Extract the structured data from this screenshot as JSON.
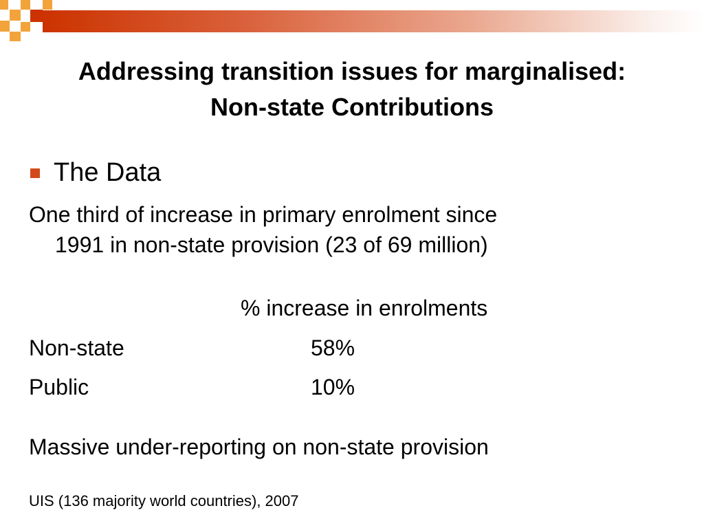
{
  "colors": {
    "accent": "#cc3300",
    "accent_light": "#f2a33a",
    "bullet": "#d24a1c"
  },
  "title": {
    "line1": "Addressing transition issues for marginalised:",
    "line2": "Non-state Contributions"
  },
  "bullet": {
    "text": "The Data"
  },
  "paragraph": {
    "line1": "One third of increase in primary enrolment since",
    "line2": "1991 in non-state provision (23 of 69 million)"
  },
  "table": {
    "header": "% increase in enrolments",
    "rows": [
      {
        "label": "Non-state",
        "value": "58%"
      },
      {
        "label": "Public",
        "value": "10%"
      }
    ]
  },
  "note": "Massive under-reporting on non-state provision",
  "source": "UIS (136 majority world countries), 2007"
}
